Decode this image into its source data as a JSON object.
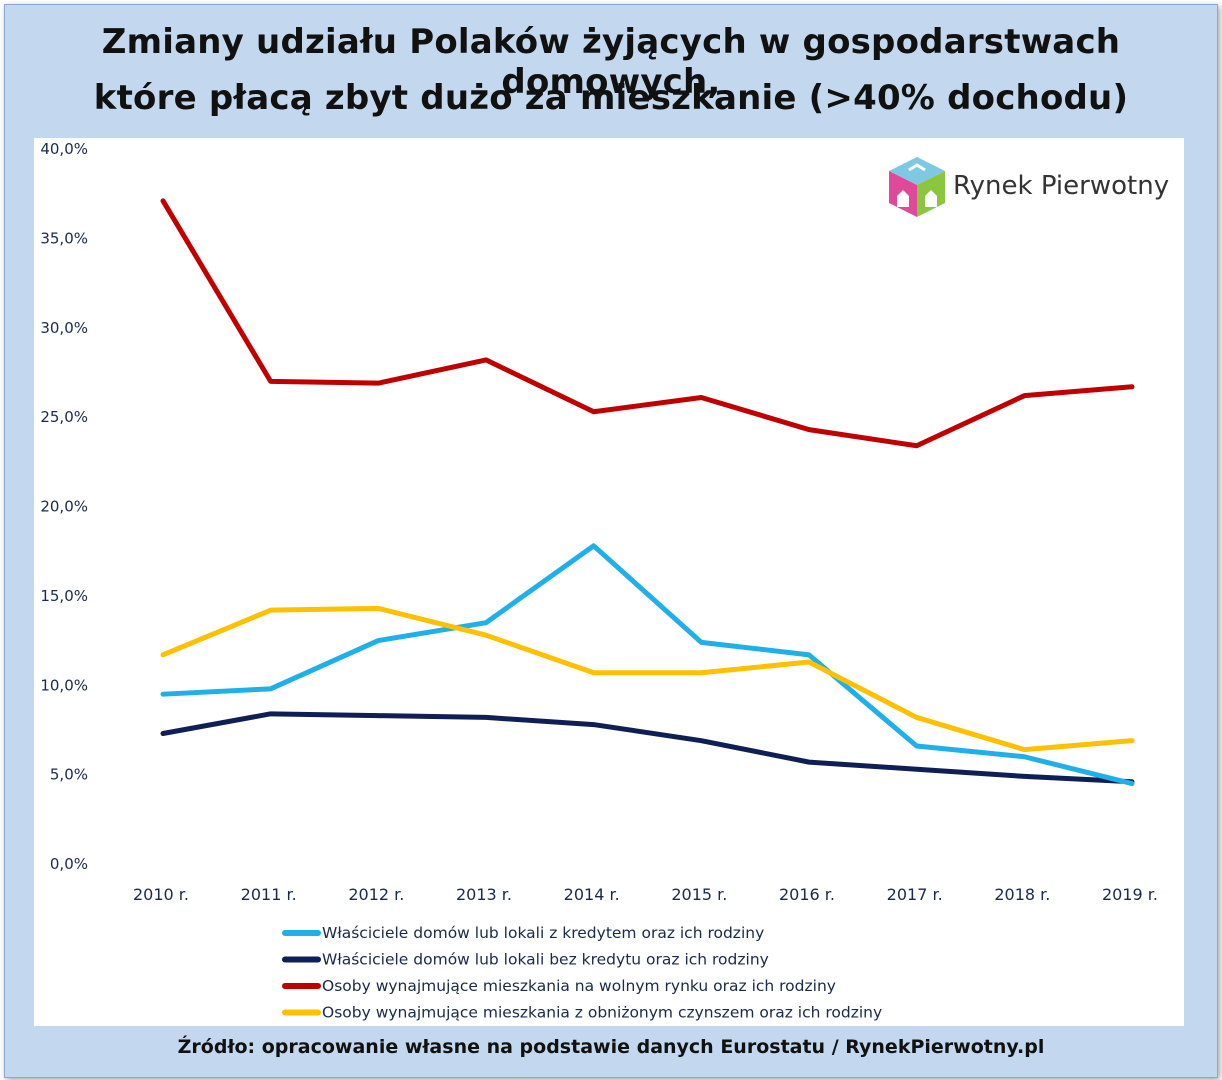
{
  "title_line1": "Zmiany udziału Polaków żyjących w gospodarstwach domowych,",
  "title_line2": "które płacą zbyt dużo za mieszkanie (>40% dochodu)",
  "logo_text": "Rynek Pierwotny",
  "source": "Źródło: opracowanie własne na podstawie danych Eurostatu / RynekPierwotny.pl",
  "colors": {
    "background": "#c3d8ee",
    "panel": "#ffffff",
    "logo_pink": "#e0489a",
    "logo_green": "#8cc63f",
    "logo_blue": "#7ec8e3"
  },
  "chart_data": {
    "type": "line",
    "categories": [
      "2010 r.",
      "2011 r.",
      "2012 r.",
      "2013 r.",
      "2014 r.",
      "2015 r.",
      "2016 r.",
      "2017 r.",
      "2018 r.",
      "2019 r."
    ],
    "ylim": [
      0,
      40
    ],
    "yticks": [
      "0,0%",
      "5,0%",
      "10,0%",
      "15,0%",
      "20,0%",
      "25,0%",
      "30,0%",
      "35,0%",
      "40,0%"
    ],
    "grid": false,
    "legend_position": "bottom",
    "series": [
      {
        "name": "Właściciele domów lub lokali z kredytem oraz ich rodziny",
        "color": "#1fb0ea",
        "values": [
          9.5,
          9.8,
          12.5,
          13.5,
          17.8,
          12.4,
          11.7,
          6.6,
          6.0,
          4.5
        ]
      },
      {
        "name": "Właściciele domów lub lokali bez kredytu oraz ich rodziny",
        "color": "#0f1f55",
        "values": [
          7.3,
          8.4,
          8.3,
          8.2,
          7.8,
          6.9,
          5.7,
          5.3,
          4.9,
          4.6
        ]
      },
      {
        "name": "Osoby wynajmujące mieszkania na wolnym rynku oraz ich rodziny",
        "color": "#c00000",
        "values": [
          37.1,
          27.0,
          26.9,
          28.2,
          25.3,
          26.1,
          24.3,
          23.4,
          26.2,
          26.7
        ]
      },
      {
        "name": "Osoby wynajmujące mieszkania z obniżonym czynszem oraz ich rodziny",
        "color": "#ffc000",
        "values": [
          11.7,
          14.2,
          14.3,
          12.8,
          10.7,
          10.7,
          11.3,
          8.2,
          6.4,
          6.9
        ]
      }
    ]
  }
}
